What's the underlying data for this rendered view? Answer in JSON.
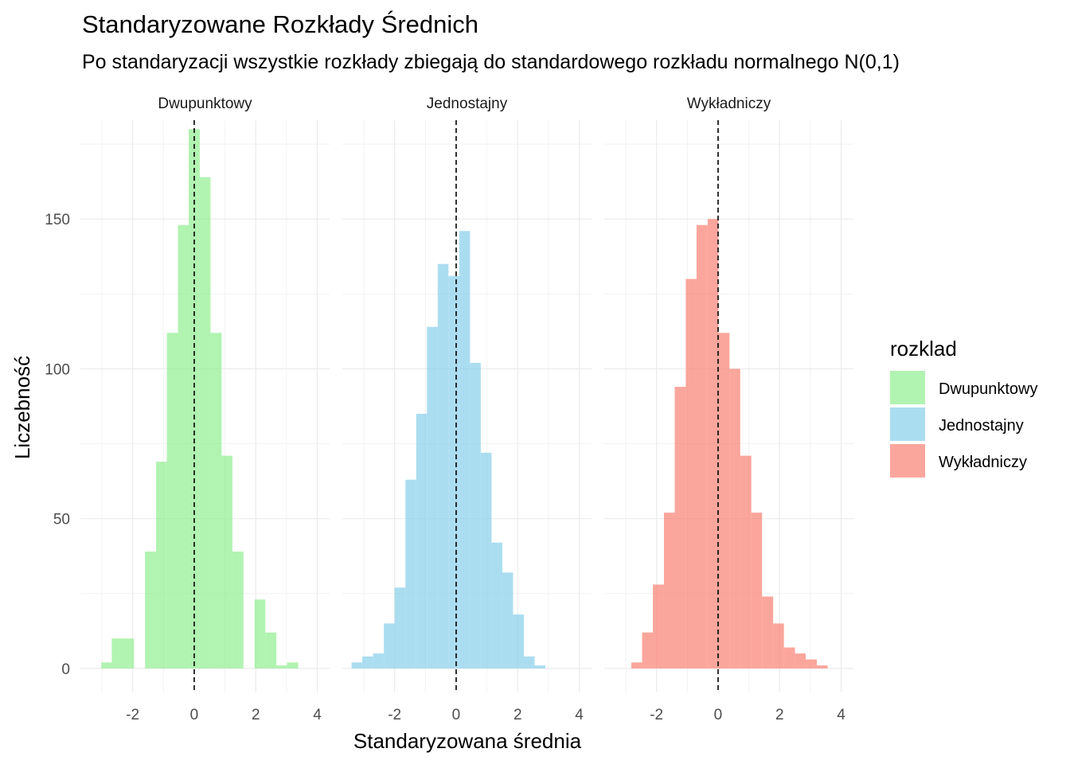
{
  "chart_data": {
    "type": "bar",
    "title": "Standaryzowane Rozkłady Średnich",
    "subtitle": "Po standaryzacji wszystkie rozkłady zbiegają do standardowego rozkładu normalnego N(0,1)",
    "xlabel": "Standaryzowana średnia",
    "ylabel": "Liczebność",
    "xlim": [
      -3.7,
      4.4
    ],
    "ylim": [
      -8,
      183
    ],
    "x_ticks": [
      -2,
      0,
      2,
      4
    ],
    "y_ticks": [
      0,
      50,
      100,
      150
    ],
    "grid": true,
    "reference_line": {
      "x": 0,
      "style": "dashed"
    },
    "legend": {
      "title": "rozklad",
      "placement": "right",
      "entries": [
        {
          "label": "Dwupunktowy",
          "color": "#90EE90"
        },
        {
          "label": "Jednostajny",
          "color": "#87CEEB"
        },
        {
          "label": "Wykładniczy",
          "color": "#FA8072"
        }
      ]
    },
    "panels": [
      {
        "name": "Dwupunktowy",
        "color": "#90EE90",
        "bins": [
          {
            "x0": -3.02,
            "x1": -2.68,
            "count": 2
          },
          {
            "x0": -2.68,
            "x1": -1.96,
            "count": 10
          },
          {
            "x0": -1.6,
            "x1": -1.24,
            "count": 39
          },
          {
            "x0": -1.24,
            "x1": -0.89,
            "count": 69
          },
          {
            "x0": -0.89,
            "x1": -0.53,
            "count": 112
          },
          {
            "x0": -0.53,
            "x1": -0.18,
            "count": 148
          },
          {
            "x0": -0.18,
            "x1": 0.18,
            "count": 180
          },
          {
            "x0": 0.18,
            "x1": 0.53,
            "count": 164
          },
          {
            "x0": 0.53,
            "x1": 0.89,
            "count": 112
          },
          {
            "x0": 0.89,
            "x1": 1.24,
            "count": 71
          },
          {
            "x0": 1.24,
            "x1": 1.6,
            "count": 39
          },
          {
            "x0": 1.96,
            "x1": 2.31,
            "count": 23
          },
          {
            "x0": 2.31,
            "x1": 2.67,
            "count": 12
          },
          {
            "x0": 2.67,
            "x1": 3.02,
            "count": 1
          },
          {
            "x0": 3.02,
            "x1": 3.38,
            "count": 2
          }
        ]
      },
      {
        "name": "Jednostajny",
        "color": "#87CEEB",
        "bins": [
          {
            "x0": -3.4,
            "x1": -3.05,
            "count": 2
          },
          {
            "x0": -3.05,
            "x1": -2.7,
            "count": 4
          },
          {
            "x0": -2.7,
            "x1": -2.35,
            "count": 5
          },
          {
            "x0": -2.35,
            "x1": -2.0,
            "count": 15
          },
          {
            "x0": -2.0,
            "x1": -1.65,
            "count": 27
          },
          {
            "x0": -1.65,
            "x1": -1.3,
            "count": 63
          },
          {
            "x0": -1.3,
            "x1": -0.95,
            "count": 85
          },
          {
            "x0": -0.95,
            "x1": -0.6,
            "count": 114
          },
          {
            "x0": -0.6,
            "x1": -0.25,
            "count": 135
          },
          {
            "x0": -0.25,
            "x1": 0.1,
            "count": 131
          },
          {
            "x0": 0.1,
            "x1": 0.45,
            "count": 146
          },
          {
            "x0": 0.45,
            "x1": 0.8,
            "count": 102
          },
          {
            "x0": 0.8,
            "x1": 1.15,
            "count": 72
          },
          {
            "x0": 1.15,
            "x1": 1.5,
            "count": 42
          },
          {
            "x0": 1.5,
            "x1": 1.85,
            "count": 32
          },
          {
            "x0": 1.85,
            "x1": 2.2,
            "count": 18
          },
          {
            "x0": 2.2,
            "x1": 2.55,
            "count": 4
          },
          {
            "x0": 2.55,
            "x1": 2.9,
            "count": 1
          }
        ]
      },
      {
        "name": "Wykładniczy",
        "color": "#FA8072",
        "bins": [
          {
            "x0": -2.82,
            "x1": -2.47,
            "count": 2
          },
          {
            "x0": -2.47,
            "x1": -2.12,
            "count": 12
          },
          {
            "x0": -2.12,
            "x1": -1.76,
            "count": 28
          },
          {
            "x0": -1.76,
            "x1": -1.41,
            "count": 52
          },
          {
            "x0": -1.41,
            "x1": -1.05,
            "count": 94
          },
          {
            "x0": -1.05,
            "x1": -0.7,
            "count": 130
          },
          {
            "x0": -0.7,
            "x1": -0.34,
            "count": 148
          },
          {
            "x0": -0.34,
            "x1": 0.01,
            "count": 150
          },
          {
            "x0": 0.01,
            "x1": 0.37,
            "count": 112
          },
          {
            "x0": 0.37,
            "x1": 0.72,
            "count": 100
          },
          {
            "x0": 0.72,
            "x1": 1.08,
            "count": 71
          },
          {
            "x0": 1.08,
            "x1": 1.43,
            "count": 52
          },
          {
            "x0": 1.43,
            "x1": 1.79,
            "count": 24
          },
          {
            "x0": 1.79,
            "x1": 2.14,
            "count": 15
          },
          {
            "x0": 2.14,
            "x1": 2.5,
            "count": 7
          },
          {
            "x0": 2.5,
            "x1": 2.85,
            "count": 5
          },
          {
            "x0": 2.85,
            "x1": 3.21,
            "count": 3
          },
          {
            "x0": 3.21,
            "x1": 3.56,
            "count": 1
          }
        ]
      }
    ]
  }
}
